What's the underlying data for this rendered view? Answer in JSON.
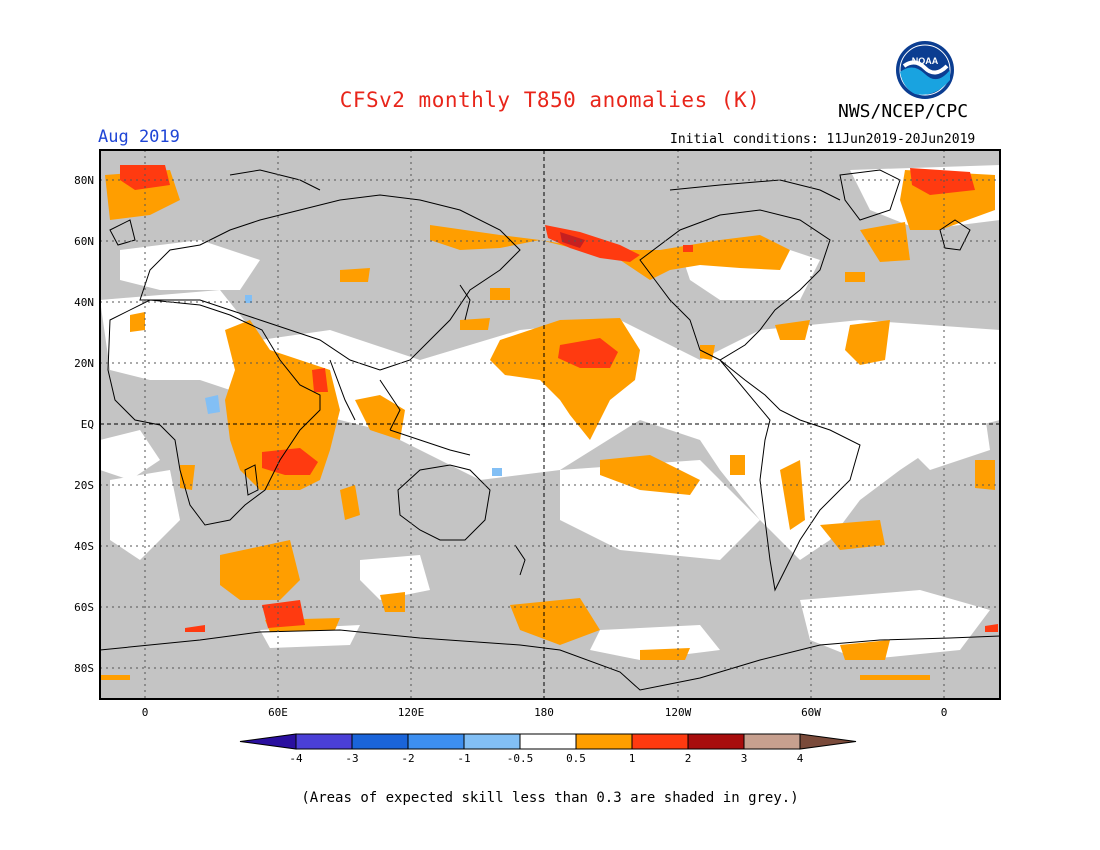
{
  "header": {
    "title": "CFSv2 monthly T850 anomalies (K)",
    "agency": "NWS/NCEP/CPC",
    "month": "Aug 2019",
    "initial_conditions": "Initial conditions: 11Jun2019-20Jun2019"
  },
  "logo": {
    "icon": "noaa-logo-icon",
    "text": "NOAA"
  },
  "map": {
    "lat_labels": [
      "80N",
      "60N",
      "40N",
      "20N",
      "EQ",
      "20S",
      "40S",
      "60S",
      "80S"
    ],
    "lon_labels": [
      "0",
      "60E",
      "120E",
      "180",
      "120W",
      "60W",
      "0"
    ]
  },
  "colorbar": {
    "labels": [
      "-4",
      "-3",
      "-2",
      "-1",
      "-0.5",
      "0.5",
      "1",
      "2",
      "3",
      "4"
    ],
    "colors": [
      "#2a0f9f",
      "#4a3fd6",
      "#1a64d9",
      "#3d8ff0",
      "#82bff5",
      "#ffffff",
      "#ff9e00",
      "#ff3a10",
      "#a80d0d",
      "#c7a08f",
      "#7a4a3a"
    ]
  },
  "footer": {
    "note": "(Areas of expected skill less than 0.3 are shaded in grey.)"
  },
  "colors": {
    "title": "#e8251a",
    "month": "#1f45d6",
    "grey_mask": "#c4c4c4"
  }
}
